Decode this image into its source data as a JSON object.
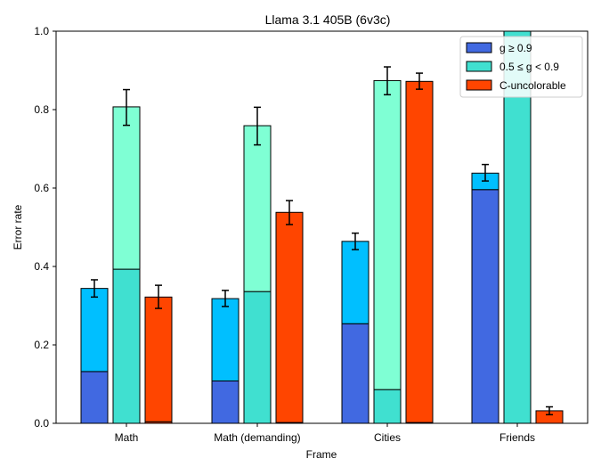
{
  "chart_data": {
    "type": "bar",
    "title": "Llama 3.1 405B (6v3c)",
    "xlabel": "Frame",
    "ylabel": "Error rate",
    "ylim": [
      0,
      1.0
    ],
    "yticks": [
      "0.0",
      "0.2",
      "0.4",
      "0.6",
      "0.8",
      "1.0"
    ],
    "categories": [
      "Math",
      "Math (demanding)",
      "Cities",
      "Friends"
    ],
    "legend": {
      "placement": "top-right",
      "entries": [
        {
          "label": "g ≥ 0.9",
          "color": "#4169e1"
        },
        {
          "label": "0.5 ≤ g < 0.9",
          "color": "#40e0d0"
        },
        {
          "label": "C-uncolorable",
          "color": "#ff4500"
        }
      ]
    },
    "series": [
      {
        "group": "g ≥ 0.9",
        "bottom_color": "#4169e1",
        "top_color": "#00bfff",
        "bottom_values": [
          0.132,
          0.108,
          0.254,
          0.596
        ],
        "totals": [
          0.344,
          0.318,
          0.464,
          0.638
        ],
        "err_low": [
          0.322,
          0.298,
          0.443,
          0.618
        ],
        "err_high": [
          0.366,
          0.339,
          0.485,
          0.66
        ]
      },
      {
        "group": "0.5 ≤ g < 0.9",
        "bottom_color": "#40e0d0",
        "top_color": "#7fffd4",
        "bottom_values": [
          0.393,
          0.336,
          0.086,
          1.0
        ],
        "totals": [
          0.807,
          0.759,
          0.874,
          1.0
        ],
        "err_low": [
          0.76,
          0.71,
          0.838,
          null
        ],
        "err_high": [
          0.851,
          0.806,
          0.909,
          null
        ]
      },
      {
        "group": "C-uncolorable",
        "bottom_color": "#ff4500",
        "top_color": "#ff4500",
        "bottom_values": [
          0.004,
          0.002,
          0.002,
          0.0
        ],
        "totals": [
          0.322,
          0.538,
          0.872,
          0.032
        ],
        "err_low": [
          0.293,
          0.507,
          0.852,
          0.022
        ],
        "err_high": [
          0.352,
          0.568,
          0.893,
          0.042
        ]
      }
    ]
  }
}
